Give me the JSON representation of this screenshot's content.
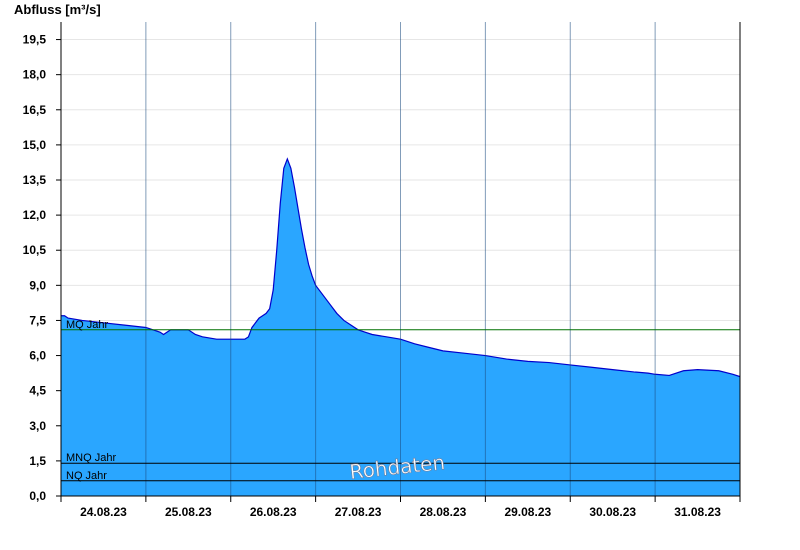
{
  "chart_data": {
    "type": "area",
    "ylabel": "Abfluss [m³/s]",
    "xlabel": "",
    "title": "",
    "ylim": [
      0,
      20.25
    ],
    "yticks": [
      "0,0",
      "1,5",
      "3,0",
      "4,5",
      "6,0",
      "7,5",
      "9,0",
      "10,5",
      "12,0",
      "13,5",
      "15,0",
      "16,5",
      "18,0",
      "19,5"
    ],
    "ytick_values": [
      0,
      1.5,
      3,
      4.5,
      6,
      7.5,
      9,
      10.5,
      12,
      13.5,
      15,
      16.5,
      18,
      19.5
    ],
    "x_start": "24.08.23 00:00",
    "x_end": "31.08.23 24:00",
    "xticks": [
      "24.08.23",
      "25.08.23",
      "26.08.23",
      "27.08.23",
      "28.08.23",
      "29.08.23",
      "30.08.23",
      "31.08.23"
    ],
    "grid": true,
    "area_color": "#2aa6ff",
    "line_color": "#0000cc",
    "series": [
      {
        "values_datetime": [
          "24.08.23 00:00",
          "24.08.23 01:00",
          "24.08.23 02:00",
          "24.08.23 06:00",
          "24.08.23 12:00",
          "24.08.23 18:00",
          "25.08.23 00:00",
          "25.08.23 02:00",
          "25.08.23 04:00",
          "25.08.23 05:00",
          "25.08.23 06:00",
          "25.08.23 07:00",
          "25.08.23 12:00",
          "25.08.23 14:00",
          "25.08.23 16:00",
          "25.08.23 20:00",
          "26.08.23 00:00",
          "26.08.23 01:00",
          "26.08.23 02:00",
          "26.08.23 03:00",
          "26.08.23 04:00",
          "26.08.23 05:00",
          "26.08.23 06:00",
          "26.08.23 07:00",
          "26.08.23 08:00",
          "26.08.23 09:00",
          "26.08.23 10:00",
          "26.08.23 11:00",
          "26.08.23 12:00",
          "26.08.23 13:00",
          "26.08.23 14:00",
          "26.08.23 15:00",
          "26.08.23 16:00",
          "26.08.23 17:00",
          "26.08.23 18:00",
          "26.08.23 19:00",
          "26.08.23 20:00",
          "26.08.23 21:00",
          "26.08.23 22:00",
          "26.08.23 23:00",
          "27.08.23 00:00",
          "27.08.23 02:00",
          "27.08.23 04:00",
          "27.08.23 06:00",
          "27.08.23 08:00",
          "27.08.23 10:00",
          "27.08.23 12:00",
          "27.08.23 14:00",
          "27.08.23 16:00",
          "27.08.23 20:00",
          "28.08.23 00:00",
          "28.08.23 04:00",
          "28.08.23 08:00",
          "28.08.23 12:00",
          "28.08.23 18:00",
          "29.08.23 00:00",
          "29.08.23 06:00",
          "29.08.23 12:00",
          "29.08.23 18:00",
          "30.08.23 00:00",
          "30.08.23 06:00",
          "30.08.23 12:00",
          "30.08.23 18:00",
          "30.08.23 22:00",
          "31.08.23 00:00",
          "31.08.23 04:00",
          "31.08.23 08:00",
          "31.08.23 12:00",
          "31.08.23 18:00",
          "31.08.23 22:00",
          "31.08.23 24:00"
        ],
        "values": [
          7.7,
          7.7,
          7.6,
          7.5,
          7.4,
          7.3,
          7.2,
          7.1,
          7.0,
          6.9,
          7.0,
          7.1,
          7.1,
          6.9,
          6.8,
          6.7,
          6.7,
          6.7,
          6.7,
          6.7,
          6.7,
          6.8,
          7.2,
          7.4,
          7.6,
          7.7,
          7.8,
          8.0,
          8.8,
          10.5,
          12.5,
          14.0,
          14.4,
          14.0,
          13.2,
          12.3,
          11.4,
          10.6,
          9.9,
          9.4,
          9.0,
          8.6,
          8.2,
          7.8,
          7.5,
          7.3,
          7.1,
          7.0,
          6.9,
          6.8,
          6.7,
          6.5,
          6.35,
          6.2,
          6.1,
          6.0,
          5.85,
          5.75,
          5.7,
          5.6,
          5.5,
          5.4,
          5.3,
          5.25,
          5.2,
          5.15,
          5.35,
          5.4,
          5.35,
          5.2,
          5.1
        ]
      }
    ],
    "reference_lines": [
      {
        "label": "MQ Jahr",
        "value": 7.1,
        "color": "#007000"
      },
      {
        "label": "MNQ Jahr",
        "value": 1.4,
        "color": "#000000"
      },
      {
        "label": "NQ Jahr",
        "value": 0.65,
        "color": "#000000"
      }
    ],
    "watermark": "Rohdaten"
  }
}
